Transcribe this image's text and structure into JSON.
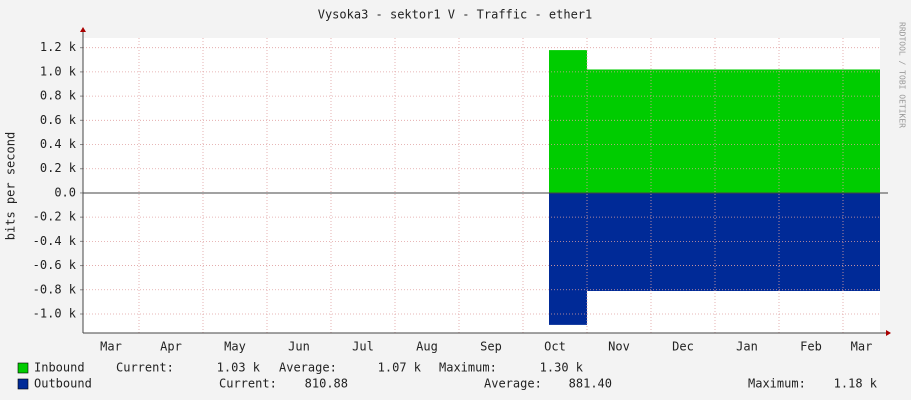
{
  "chart_data": {
    "type": "area",
    "title": "Vysoka3 - sektor1 V - Traffic - ether1",
    "y_label": "bits per second",
    "watermark": "RRDTOOL / TOBI OETIKER",
    "categories": [
      "Mar",
      "Apr",
      "May",
      "Jun",
      "Jul",
      "Aug",
      "Sep",
      "Oct",
      "Nov",
      "Dec",
      "Jan",
      "Feb",
      "Mar"
    ],
    "ylim": [
      -1157,
      1280
    ],
    "yticks": [
      {
        "value": 1200,
        "label": "1.2 k"
      },
      {
        "value": 1000,
        "label": "1.0 k"
      },
      {
        "value": 800,
        "label": "0.8 k"
      },
      {
        "value": 600,
        "label": "0.6 k"
      },
      {
        "value": 400,
        "label": "0.4 k"
      },
      {
        "value": 200,
        "label": "0.2 k"
      },
      {
        "value": 0,
        "label": "0.0"
      },
      {
        "value": -200,
        "label": "-0.2 k"
      },
      {
        "value": -400,
        "label": "-0.4 k"
      },
      {
        "value": -600,
        "label": "-0.6 k"
      },
      {
        "value": -800,
        "label": "-0.8 k"
      },
      {
        "value": -1000,
        "label": "-1.0 k"
      }
    ],
    "grid": true,
    "series": [
      {
        "name": "Inbound",
        "color": "#00cc00",
        "values": [
          null,
          null,
          null,
          null,
          null,
          null,
          null,
          1180,
          1020,
          1020,
          1020,
          1020,
          1020
        ],
        "stats": [
          {
            "label": "Current:",
            "value": "1.03 k"
          },
          {
            "label": "Average:",
            "value": "1.07 k"
          },
          {
            "label": "Maximum:",
            "value": "1.30 k"
          }
        ]
      },
      {
        "name": "Outbound",
        "color": "#002a97",
        "values": [
          null,
          null,
          null,
          null,
          null,
          null,
          null,
          -1090,
          -810,
          -810,
          -810,
          -810,
          -810
        ],
        "stats": [
          {
            "label": "Current:",
            "value": "810.88"
          },
          {
            "label": "Average:",
            "value": "881.40"
          },
          {
            "label": "Maximum:",
            "value": "1.18 k"
          }
        ]
      }
    ]
  }
}
